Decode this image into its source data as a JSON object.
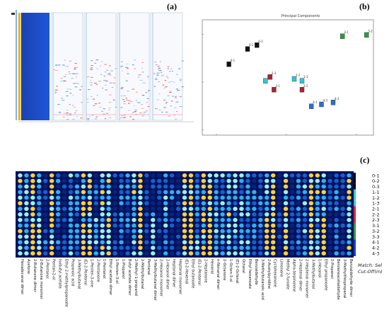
{
  "labels": {
    "a": "(a)",
    "b": "(b)",
    "c": "(c)"
  },
  "panel_b": {
    "title": "Principal Components",
    "points": [
      {
        "label": "0-1",
        "color": "#111111",
        "x": -0.74,
        "y": 0.28
      },
      {
        "label": "0-2",
        "color": "#111111",
        "x": -0.5,
        "y": 0.52
      },
      {
        "label": "0-3",
        "color": "#111111",
        "x": -0.38,
        "y": 0.58
      },
      {
        "label": "1-1",
        "color": "#2fc7d6",
        "x": -0.27,
        "y": 0.02
      },
      {
        "label": "1-2",
        "color": "#2fc7d6",
        "x": 0.1,
        "y": 0.05
      },
      {
        "label": "1-3",
        "color": "#2fc7d6",
        "x": 0.2,
        "y": 0.02
      },
      {
        "label": "2-1",
        "color": "#b02030",
        "x": -0.16,
        "y": -0.12
      },
      {
        "label": "2-2",
        "color": "#b02030",
        "x": 0.2,
        "y": -0.12
      },
      {
        "label": "2-3",
        "color": "#b02030",
        "x": -0.21,
        "y": 0.08
      },
      {
        "label": "3-1",
        "color": "#2e9a3c",
        "x": 0.72,
        "y": 0.72
      },
      {
        "label": "3-2",
        "color": "#2e9a3c",
        "x": 1.03,
        "y": 0.74
      },
      {
        "label": "4-1",
        "color": "#2b6fd0",
        "x": 0.32,
        "y": -0.38
      },
      {
        "label": "4-2",
        "color": "#2b6fd0",
        "x": 0.6,
        "y": -0.32
      },
      {
        "label": "4-3",
        "color": "#2b6fd0",
        "x": 0.45,
        "y": -0.35
      }
    ]
  },
  "panel_c": {
    "legend": [
      "0-1",
      "0-2",
      "0-3",
      "1-1",
      "1-2",
      "1-3",
      "2-1",
      "2-2",
      "2-3",
      "3-1",
      "3-2",
      "3-3",
      "4-1",
      "4-2",
      "4-3"
    ],
    "match_text": "Match: Sel",
    "cutoff_text": "Cut-Off(m)",
    "compounds": [
      "Hexadecanal dimer",
      "Acetone",
      "2-Butanone dimer",
      "2-Butanone monomer",
      "2-Pentanol",
      "Pentan-2-ol",
      "Isobutyl acetate",
      "Ethyl 2-methylpropanoate",
      "Propanoic acid",
      "3-Methylbutanal",
      "(E)-2-Pentenal",
      "1-Penten-3-one",
      "2-Pentanone",
      "1-Pentanol",
      "Ethyl acetate dimer",
      "1-Penten-3-ol",
      "1-Propanol",
      "Butyl acetate dimer",
      "2-Methyl-1-propanol",
      "2-Methylbutanal",
      "Pentanal",
      "3-Methylbutanal dimer",
      "2-Hexanol monomer",
      "2-Hexanol dimer",
      "Heptanal dimer",
      "Heptanal monomer",
      "(E)-2-Hexenal",
      "Ethyl butanoate",
      "(E)-2-Pentenal",
      "2-Heptanone",
      "Hexanal",
      "n-Nonanal dimer",
      "2-Octanone",
      "1-Octen-3-ol",
      "(E)-2-Octenal",
      "Octanal",
      "Ethyl hexanoate",
      "Benzaldehyde",
      "3-Methylbutanoic acid",
      "2-Acetylpyridine",
      "Cyclohexanone",
      "Limonene",
      "Methyl 2-furoate",
      "Alpha-terpinolene",
      "2-Heptenal dimer",
      "2-Heptenal monomer",
      "3-Methylbutanol",
      "1-Hexanol",
      "Ethyl propanoate",
      "2-Propanol",
      "Benzeneacetaldehyde",
      "3-Methylthiopropanal",
      "Benzaldehyde dimer"
    ]
  }
}
